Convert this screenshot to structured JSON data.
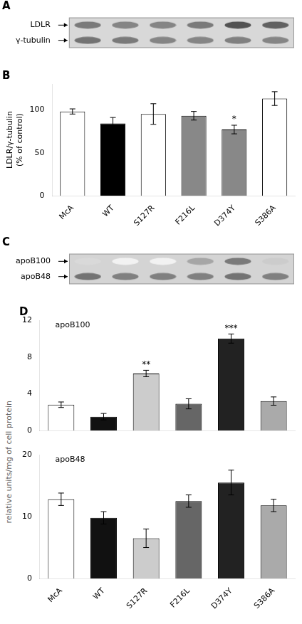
{
  "chart_data": [
    {
      "type": "blot",
      "annotations": [
        "A"
      ],
      "categories": [
        null,
        null,
        null,
        null,
        null,
        null
      ],
      "series": [
        {
          "name": "LDLR",
          "values": [
            0.52,
            0.48,
            0.48,
            0.52,
            0.68,
            0.62
          ]
        },
        {
          "name": "γ-tubulin",
          "values": [
            0.55,
            0.52,
            0.48,
            0.48,
            0.5,
            0.48
          ]
        }
      ],
      "color": "#d8d8d8",
      "tick_labels": "y",
      "grid": false
    },
    {
      "type": "bar",
      "annotations": [
        "B"
      ],
      "categories": [
        "McA",
        "WT",
        "S127R",
        "F216L",
        "D374Y",
        "S386A"
      ],
      "values": [
        98,
        84,
        95,
        93,
        77,
        113
      ],
      "errors": [
        3,
        7,
        12,
        5,
        5,
        8
      ],
      "significance": [
        null,
        null,
        null,
        null,
        "*",
        null
      ],
      "colors": [
        "white",
        "black",
        "white",
        "#888888",
        "#888888",
        "white"
      ],
      "ylabel": "LDLR/γ-tubulin\n(% of control)",
      "ylim": [
        0,
        130
      ],
      "yticks": [
        0,
        50,
        100
      ],
      "grid": false
    },
    {
      "type": "blot",
      "annotations": [
        "C"
      ],
      "categories": [
        null,
        null,
        null,
        null,
        null,
        null
      ],
      "series": [
        {
          "name": "apoB100",
          "values": [
            0.15,
            0.05,
            0.05,
            0.35,
            0.52,
            0.2
          ]
        },
        {
          "name": "apoB48",
          "values": [
            0.55,
            0.5,
            0.5,
            0.5,
            0.55,
            0.5
          ]
        }
      ],
      "color": "#d4d4d4",
      "tick_labels": "y",
      "grid": false
    },
    {
      "type": "bar",
      "title": "apoB100",
      "annotations": [
        "D"
      ],
      "categories": [
        null,
        null,
        null,
        null,
        null,
        null
      ],
      "values": [
        2.8,
        1.5,
        6.2,
        2.9,
        10.0,
        3.2
      ],
      "errors": [
        0.3,
        0.35,
        0.35,
        0.55,
        0.5,
        0.45
      ],
      "significance": [
        null,
        null,
        "**",
        null,
        "***",
        null
      ],
      "colors": [
        "white",
        "#111111",
        "#cccccc",
        "#666666",
        "#222222",
        "#aaaaaa"
      ],
      "ylim": [
        0,
        12
      ],
      "yticks": [
        0,
        4,
        8,
        12
      ],
      "tick_labels": "y",
      "grid": false
    },
    {
      "type": "bar",
      "title": "apoB48",
      "categories": [
        "McA",
        "WT",
        "S127R",
        "F216L",
        "D374Y",
        "S386A"
      ],
      "values": [
        12.8,
        9.8,
        6.5,
        12.5,
        15.5,
        11.8
      ],
      "errors": [
        1.0,
        1.0,
        1.5,
        1.0,
        2.0,
        1.0
      ],
      "colors": [
        "white",
        "#111111",
        "#cccccc",
        "#666666",
        "#222222",
        "#aaaaaa"
      ],
      "ylabel": "relative units/mg of cell protein",
      "ylim": [
        0,
        20
      ],
      "yticks": [
        0,
        10,
        20
      ],
      "grid": false
    }
  ]
}
